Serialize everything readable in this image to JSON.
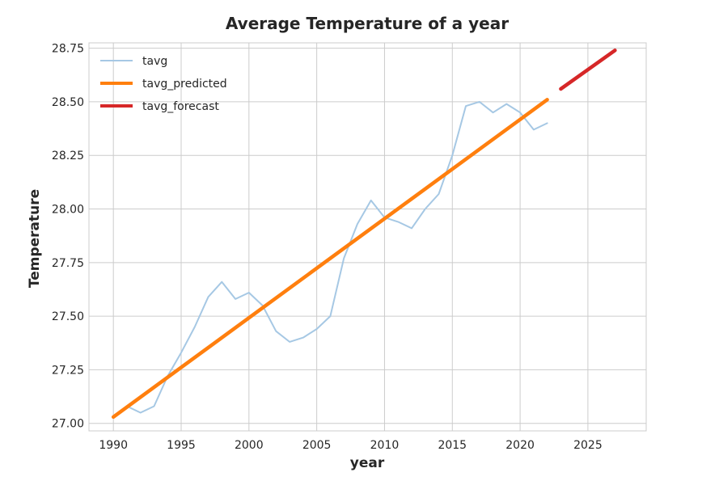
{
  "chart_data": {
    "type": "line",
    "title": "Average Temperature of a year",
    "xlabel": "year",
    "ylabel": "Temperature",
    "xlim": [
      1988.2,
      2029.3
    ],
    "ylim": [
      26.965,
      28.775
    ],
    "xticks": [
      1990,
      1995,
      2000,
      2005,
      2010,
      2015,
      2020,
      2025
    ],
    "yticks": [
      27.0,
      27.25,
      27.5,
      27.75,
      28.0,
      28.25,
      28.5,
      28.75
    ],
    "ytick_labels": [
      "27.00",
      "27.25",
      "27.50",
      "27.75",
      "28.00",
      "28.25",
      "28.50",
      "28.75"
    ],
    "grid": true,
    "legend_position": "top-left",
    "series": [
      {
        "name": "tavg",
        "color": "#a6c8e4",
        "x": [
          1990,
          1991,
          1992,
          1993,
          1994,
          1995,
          1996,
          1997,
          1998,
          1999,
          2000,
          2001,
          2002,
          2003,
          2004,
          2005,
          2006,
          2007,
          2008,
          2009,
          2010,
          2011,
          2012,
          2013,
          2014,
          2015,
          2016,
          2017,
          2018,
          2019,
          2020,
          2021,
          2022
        ],
        "y": [
          27.03,
          27.08,
          27.05,
          27.08,
          27.22,
          27.33,
          27.45,
          27.59,
          27.66,
          27.58,
          27.61,
          27.55,
          27.43,
          27.38,
          27.4,
          27.44,
          27.5,
          27.77,
          27.93,
          28.04,
          27.96,
          27.94,
          27.91,
          28.0,
          28.07,
          28.25,
          28.48,
          28.5,
          28.45,
          28.49,
          28.45,
          28.37,
          28.4
        ]
      },
      {
        "name": "tavg_predicted",
        "color": "#ff7f0e",
        "x": [
          1990,
          2022
        ],
        "y": [
          27.03,
          28.51
        ]
      },
      {
        "name": "tavg_forecast",
        "color": "#d62728",
        "x": [
          2023,
          2027
        ],
        "y": [
          28.56,
          28.74
        ]
      }
    ]
  }
}
